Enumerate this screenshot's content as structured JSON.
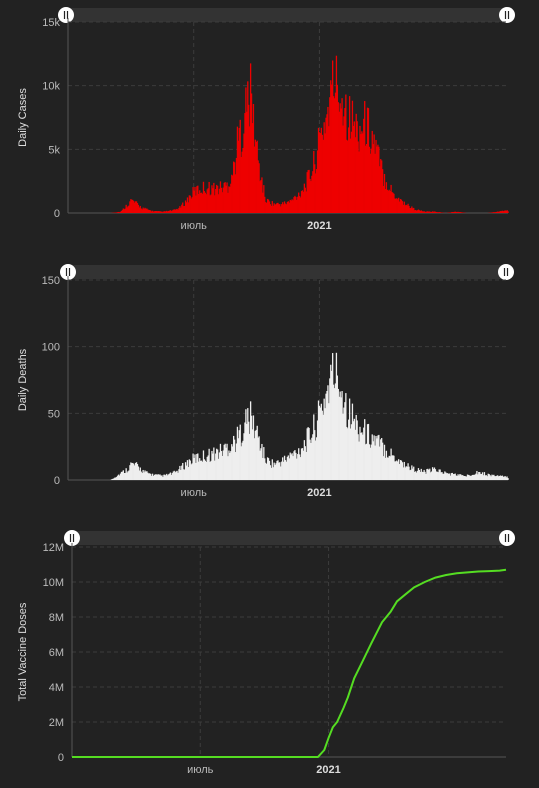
{
  "colors": {
    "cases": "#ee0000",
    "deaths": "#eeeeee",
    "vaccines": "#55dd22",
    "background": "#222222"
  },
  "chart_data": [
    {
      "type": "bar",
      "ylabel": "Daily Cases",
      "ylim": [
        0,
        15000
      ],
      "yticks": [
        0,
        5000,
        10000,
        15000
      ],
      "ytick_labels": [
        "0",
        "5k",
        "10k",
        "15k"
      ],
      "xticks": [
        {
          "label": "июль",
          "month_index": 6,
          "bold": false
        },
        {
          "label": "2021",
          "month_index": 12,
          "bold": true
        }
      ],
      "x_range_months": [
        0,
        21
      ],
      "grid": true,
      "x": [
        0.0,
        0.5,
        1.0,
        1.3,
        1.6,
        2.0,
        2.5,
        3.0,
        3.5,
        4.0,
        4.5,
        5.0,
        5.3,
        5.6,
        6.0,
        6.5,
        7.0,
        7.3,
        7.6,
        7.9,
        8.1,
        8.3,
        8.5,
        8.7,
        8.9,
        9.1,
        9.4,
        9.8,
        10.2,
        10.6,
        11.0,
        11.3,
        11.6,
        11.9,
        12.1,
        12.3,
        12.5,
        12.7,
        12.9,
        13.1,
        13.4,
        13.8,
        14.2,
        14.6,
        15.0,
        15.5,
        16.0,
        16.5,
        17.0,
        17.5,
        18.0,
        18.5,
        19.0,
        19.5,
        20.0,
        20.5,
        21.0
      ],
      "values": [
        0,
        0,
        0,
        0,
        0,
        0,
        100,
        1000,
        400,
        150,
        100,
        200,
        400,
        900,
        1700,
        2000,
        1900,
        2000,
        2200,
        3500,
        5800,
        6500,
        8500,
        9200,
        6000,
        3500,
        1000,
        700,
        700,
        900,
        1500,
        2200,
        3200,
        5000,
        6500,
        7500,
        9000,
        10500,
        9500,
        9000,
        7500,
        6500,
        7000,
        5500,
        3000,
        1500,
        800,
        300,
        100,
        100,
        0,
        100,
        0,
        0,
        0,
        100,
        200
      ]
    },
    {
      "type": "bar",
      "ylabel": "Daily Deaths",
      "ylim": [
        0,
        150
      ],
      "yticks": [
        0,
        50,
        100,
        150
      ],
      "ytick_labels": [
        "0",
        "50",
        "100",
        "150"
      ],
      "xticks": [
        {
          "label": "июль",
          "month_index": 6,
          "bold": false
        },
        {
          "label": "2021",
          "month_index": 12,
          "bold": true
        }
      ],
      "x_range_months": [
        0,
        21
      ],
      "grid": true,
      "x": [
        0.0,
        0.5,
        1.0,
        1.3,
        1.6,
        2.0,
        2.5,
        2.8,
        3.0,
        3.3,
        3.6,
        4.0,
        4.5,
        5.0,
        5.3,
        5.6,
        6.0,
        6.5,
        7.0,
        7.3,
        7.6,
        7.9,
        8.1,
        8.3,
        8.5,
        8.7,
        8.9,
        9.1,
        9.4,
        9.8,
        10.2,
        10.6,
        11.0,
        11.3,
        11.6,
        11.9,
        12.1,
        12.3,
        12.5,
        12.7,
        12.9,
        13.1,
        13.4,
        13.8,
        14.2,
        14.6,
        15.0,
        15.5,
        16.0,
        16.5,
        17.0,
        17.5,
        18.0,
        18.5,
        19.0,
        19.5,
        20.0,
        20.5,
        21.0
      ],
      "values": [
        0,
        0,
        0,
        0,
        0,
        0,
        5,
        8,
        12,
        10,
        6,
        4,
        3,
        5,
        8,
        12,
        16,
        18,
        20,
        22,
        25,
        28,
        32,
        38,
        45,
        46,
        38,
        30,
        15,
        12,
        14,
        18,
        22,
        28,
        35,
        45,
        55,
        65,
        75,
        80,
        75,
        65,
        50,
        40,
        35,
        30,
        25,
        18,
        12,
        8,
        6,
        8,
        5,
        4,
        3,
        6,
        4,
        3,
        2
      ]
    },
    {
      "type": "line",
      "ylabel": "Total Vaccine Doses",
      "ylim": [
        0,
        12000000
      ],
      "yticks": [
        0,
        2000000,
        4000000,
        6000000,
        8000000,
        10000000,
        12000000
      ],
      "ytick_labels": [
        "0",
        "2M",
        "4M",
        "6M",
        "8M",
        "10M",
        "12M"
      ],
      "xticks": [
        {
          "label": "июль",
          "month_index": 6,
          "bold": false
        },
        {
          "label": "2021",
          "month_index": 12,
          "bold": true
        }
      ],
      "x_range_months": [
        0,
        20.3
      ],
      "grid": true,
      "x": [
        0,
        11.5,
        11.8,
        12.0,
        12.2,
        12.4,
        12.7,
        12.9,
        13.2,
        13.6,
        14.0,
        14.5,
        14.9,
        15.2,
        15.6,
        16.0,
        16.5,
        17.0,
        17.5,
        18.0,
        18.5,
        19.0,
        19.5,
        20.0,
        20.3
      ],
      "values": [
        0,
        0,
        400000,
        1100000,
        1700000,
        2000000,
        2800000,
        3400000,
        4500000,
        5500000,
        6500000,
        7700000,
        8300000,
        8900000,
        9300000,
        9700000,
        10000000,
        10250000,
        10400000,
        10500000,
        10550000,
        10600000,
        10620000,
        10650000,
        10700000
      ]
    }
  ]
}
